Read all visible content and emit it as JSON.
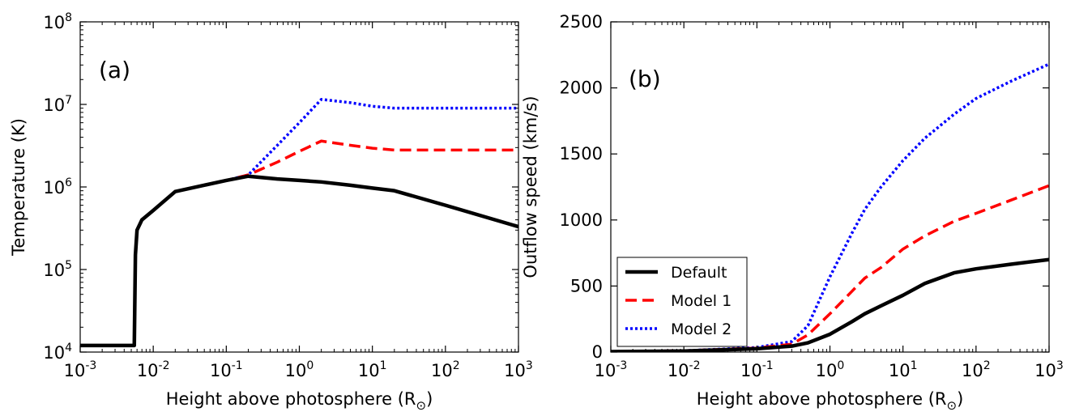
{
  "chart_data": [
    {
      "type": "line",
      "panel_label": "(a)",
      "xlabel": "Height above photosphere (R",
      "xlabel_symbol": "⊙",
      "ylabel": "Temperature (K)",
      "xscale": "log",
      "yscale": "log",
      "xlim": [
        0.001,
        1000
      ],
      "ylim": [
        10000,
        100000000
      ],
      "xticks": [
        {
          "value": 0.001,
          "base": "10",
          "exp": "-3"
        },
        {
          "value": 0.01,
          "base": "10",
          "exp": "-2"
        },
        {
          "value": 0.1,
          "base": "10",
          "exp": "-1"
        },
        {
          "value": 1,
          "base": "10",
          "exp": "0"
        },
        {
          "value": 10,
          "base": "10",
          "exp": "1"
        },
        {
          "value": 100,
          "base": "10",
          "exp": "2"
        },
        {
          "value": 1000,
          "base": "10",
          "exp": "3"
        }
      ],
      "yticks": [
        {
          "value": 10000,
          "base": "10",
          "exp": "4"
        },
        {
          "value": 100000,
          "base": "10",
          "exp": "5"
        },
        {
          "value": 1000000,
          "base": "10",
          "exp": "6"
        },
        {
          "value": 10000000,
          "base": "10",
          "exp": "7"
        },
        {
          "value": 100000000,
          "base": "10",
          "exp": "8"
        }
      ],
      "grid": false,
      "series": [
        {
          "key": "default",
          "color": "#000000",
          "style": "solid",
          "x": [
            0.001,
            0.0055,
            0.0057,
            0.006,
            0.007,
            0.01,
            0.02,
            0.05,
            0.1,
            0.2,
            0.5,
            1,
            2,
            5,
            10,
            20,
            100,
            1000
          ],
          "y": [
            12000,
            12000,
            150000,
            300000,
            400000,
            520000,
            880000,
            1050000,
            1200000,
            1350000,
            1250000,
            1200000,
            1150000,
            1050000,
            970000,
            900000,
            600000,
            330000
          ]
        },
        {
          "key": "model1",
          "color": "#ff0000",
          "style": "dashed",
          "x": [
            0.001,
            0.0055,
            0.0057,
            0.006,
            0.007,
            0.01,
            0.02,
            0.05,
            0.1,
            0.2,
            0.5,
            1,
            2,
            5,
            10,
            20,
            100,
            1000
          ],
          "y": [
            12000,
            12000,
            150000,
            300000,
            400000,
            520000,
            880000,
            1050000,
            1200000,
            1400000,
            2000000,
            2700000,
            3600000,
            3200000,
            2950000,
            2800000,
            2800000,
            2800000
          ]
        },
        {
          "key": "model2",
          "color": "#0000ff",
          "style": "dotted",
          "x": [
            0.001,
            0.0055,
            0.0057,
            0.006,
            0.007,
            0.01,
            0.02,
            0.05,
            0.1,
            0.2,
            0.5,
            1,
            2,
            5,
            10,
            20,
            100,
            1000
          ],
          "y": [
            12000,
            12000,
            150000,
            300000,
            400000,
            520000,
            880000,
            1050000,
            1200000,
            1400000,
            3200000,
            6000000,
            11500000,
            10500000,
            9500000,
            9000000,
            9000000,
            9000000
          ]
        }
      ]
    },
    {
      "type": "line",
      "panel_label": "(b)",
      "xlabel": "Height above photosphere (R",
      "xlabel_symbol": "⊙",
      "ylabel": "Outflow speed (km/s)",
      "xscale": "log",
      "yscale": "linear",
      "xlim": [
        0.001,
        1000
      ],
      "ylim": [
        0,
        2500
      ],
      "xticks": [
        {
          "value": 0.001,
          "base": "10",
          "exp": "-3"
        },
        {
          "value": 0.01,
          "base": "10",
          "exp": "-2"
        },
        {
          "value": 0.1,
          "base": "10",
          "exp": "-1"
        },
        {
          "value": 1,
          "base": "10",
          "exp": "0"
        },
        {
          "value": 10,
          "base": "10",
          "exp": "1"
        },
        {
          "value": 100,
          "base": "10",
          "exp": "2"
        },
        {
          "value": 1000,
          "base": "10",
          "exp": "3"
        }
      ],
      "yticks": [
        {
          "value": 0,
          "label": "0"
        },
        {
          "value": 500,
          "label": "500"
        },
        {
          "value": 1000,
          "label": "1000"
        },
        {
          "value": 1500,
          "label": "1500"
        },
        {
          "value": 2000,
          "label": "2000"
        },
        {
          "value": 2500,
          "label": "2500"
        }
      ],
      "grid": false,
      "legend": {
        "position": "lower-left",
        "entries": [
          {
            "series": "default",
            "label": "Default"
          },
          {
            "series": "model1",
            "label": "Model 1"
          },
          {
            "series": "model2",
            "label": "Model 2"
          }
        ]
      },
      "series": [
        {
          "key": "default",
          "name": "Default",
          "color": "#000000",
          "style": "solid",
          "x": [
            0.001,
            0.01,
            0.1,
            0.3,
            0.5,
            1,
            2,
            3,
            5,
            10,
            20,
            50,
            100,
            300,
            1000
          ],
          "y": [
            3,
            8,
            25,
            45,
            70,
            135,
            230,
            290,
            350,
            430,
            520,
            600,
            630,
            665,
            700
          ]
        },
        {
          "key": "model1",
          "name": "Model 1",
          "color": "#ff0000",
          "style": "dashed",
          "x": [
            0.001,
            0.01,
            0.1,
            0.3,
            0.5,
            1,
            2,
            3,
            5,
            10,
            20,
            50,
            100,
            300,
            1000
          ],
          "y": [
            3,
            10,
            30,
            60,
            130,
            290,
            460,
            560,
            640,
            780,
            880,
            990,
            1050,
            1150,
            1260
          ]
        },
        {
          "key": "model2",
          "name": "Model 2",
          "color": "#0000ff",
          "style": "dotted",
          "x": [
            0.001,
            0.01,
            0.1,
            0.3,
            0.5,
            1,
            2,
            3,
            5,
            10,
            20,
            50,
            100,
            300,
            1000
          ],
          "y": [
            3,
            10,
            35,
            80,
            200,
            570,
            900,
            1080,
            1250,
            1450,
            1620,
            1800,
            1920,
            2050,
            2180
          ]
        }
      ]
    }
  ]
}
